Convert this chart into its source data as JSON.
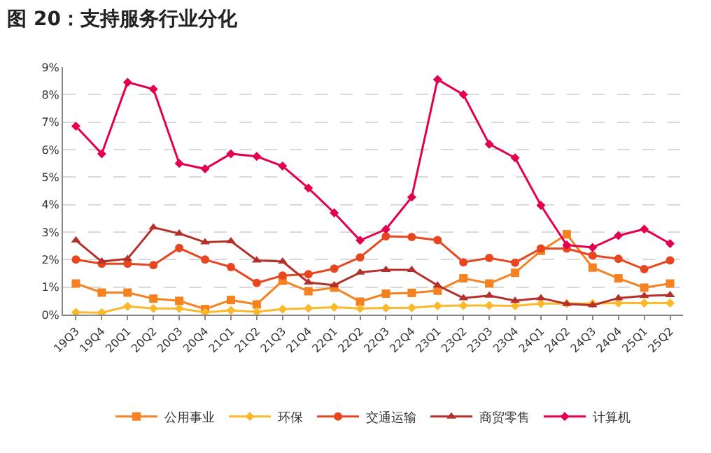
{
  "chart_data": {
    "type": "line",
    "title": "图 20：支持服务行业分化",
    "categories": [
      "19Q3",
      "19Q4",
      "20Q1",
      "20Q2",
      "20Q3",
      "20Q4",
      "21Q1",
      "21Q2",
      "21Q3",
      "21Q4",
      "22Q1",
      "22Q2",
      "22Q3",
      "22Q4",
      "23Q1",
      "23Q2",
      "23Q3",
      "23Q4",
      "24Q1",
      "24Q2",
      "24Q3",
      "24Q4",
      "25Q1",
      "25Q2"
    ],
    "series": [
      {
        "name": "公用事业",
        "color": "#f58220",
        "marker": "square",
        "values": [
          1.13,
          0.8,
          0.8,
          0.58,
          0.5,
          0.2,
          0.53,
          0.37,
          1.23,
          0.85,
          0.98,
          0.47,
          0.76,
          0.79,
          0.87,
          1.32,
          1.13,
          1.52,
          2.32,
          2.92,
          1.71,
          1.32,
          0.98,
          1.13
        ]
      },
      {
        "name": "环保",
        "color": "#fbb829",
        "marker": "diamond",
        "values": [
          0.08,
          0.07,
          0.3,
          0.22,
          0.22,
          0.08,
          0.15,
          0.1,
          0.2,
          0.23,
          0.27,
          0.22,
          0.24,
          0.25,
          0.32,
          0.33,
          0.33,
          0.32,
          0.4,
          0.4,
          0.4,
          0.42,
          0.42,
          0.42
        ]
      },
      {
        "name": "交通运输",
        "color": "#e8461f",
        "marker": "circle",
        "values": [
          2.0,
          1.85,
          1.85,
          1.8,
          2.42,
          2.0,
          1.73,
          1.15,
          1.42,
          1.47,
          1.67,
          2.08,
          2.85,
          2.82,
          2.71,
          1.9,
          2.06,
          1.89,
          2.4,
          2.4,
          2.15,
          2.03,
          1.65,
          1.97
        ]
      },
      {
        "name": "商贸零售",
        "color": "#b5302a",
        "marker": "triangle",
        "values": [
          2.7,
          1.93,
          2.03,
          3.17,
          2.95,
          2.63,
          2.67,
          1.97,
          1.93,
          1.17,
          1.07,
          1.53,
          1.63,
          1.63,
          1.06,
          0.6,
          0.69,
          0.5,
          0.6,
          0.39,
          0.34,
          0.6,
          0.68,
          0.71
        ]
      },
      {
        "name": "计算机",
        "color": "#e5004f",
        "marker": "diamond",
        "values": [
          6.85,
          5.85,
          8.45,
          8.2,
          5.5,
          5.3,
          5.85,
          5.75,
          5.4,
          4.6,
          3.7,
          2.7,
          3.1,
          4.27,
          8.55,
          8.0,
          6.2,
          5.7,
          3.97,
          2.53,
          2.44,
          2.87,
          3.11,
          2.58
        ]
      }
    ],
    "ylim": [
      0,
      9
    ],
    "yticks": [
      {
        "value": 0,
        "label": "0%"
      },
      {
        "value": 1,
        "label": "1%"
      },
      {
        "value": 2,
        "label": "2%"
      },
      {
        "value": 3,
        "label": "3%"
      },
      {
        "value": 4,
        "label": "4%"
      },
      {
        "value": 5,
        "label": "5%"
      },
      {
        "value": 6,
        "label": "6%"
      },
      {
        "value": 7,
        "label": "7%"
      },
      {
        "value": 8,
        "label": "8%"
      },
      {
        "value": 9,
        "label": "9%"
      }
    ],
    "grid": "y",
    "legend": "bottom",
    "line_style": "solid"
  }
}
